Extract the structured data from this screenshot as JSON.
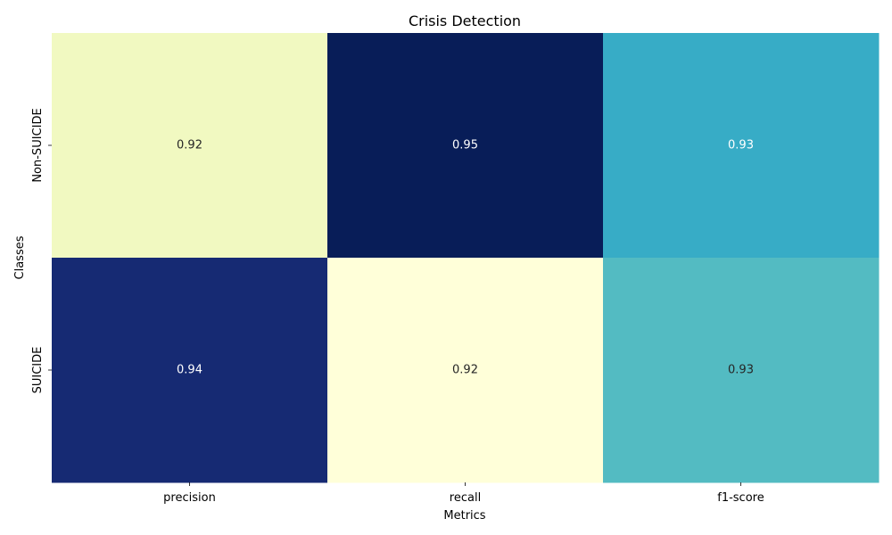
{
  "chart_data": {
    "type": "heatmap",
    "title": "Crisis Detection",
    "xlabel": "Metrics",
    "ylabel": "Classes",
    "x_categories": [
      "precision",
      "recall",
      "f1-score"
    ],
    "y_categories": [
      "Non-SUICIDE",
      "SUICIDE"
    ],
    "values": [
      [
        0.92,
        0.95,
        0.93
      ],
      [
        0.94,
        0.92,
        0.93
      ]
    ],
    "value_labels": [
      [
        "0.92",
        "0.95",
        "0.93"
      ],
      [
        "0.94",
        "0.92",
        "0.93"
      ]
    ],
    "colormap": "YlGnBu",
    "colorbar": false,
    "cell_colors": [
      [
        "#f1f9c1",
        "#081d58",
        "#37acc6"
      ],
      [
        "#162a73",
        "#ffffd9",
        "#53bbc2"
      ]
    ],
    "cell_text_colors": [
      [
        "#262626",
        "#ffffff",
        "#ffffff"
      ],
      [
        "#ffffff",
        "#262626",
        "#262626"
      ]
    ]
  }
}
